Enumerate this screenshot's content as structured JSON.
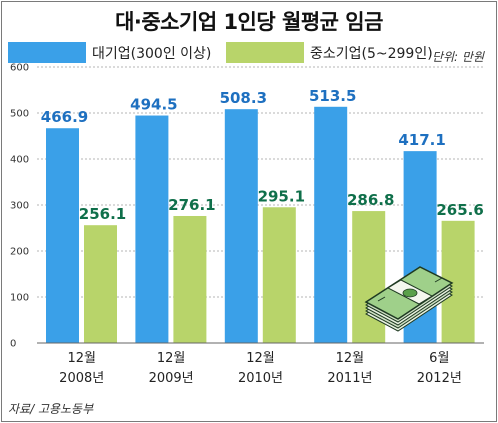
{
  "title": "대·중소기업 1인당 월평균 임금",
  "unit": "단위: 만원",
  "source": "자료/ 고용노동부",
  "colors": {
    "large": "#3aa0e8",
    "small": "#b8d46a",
    "label_large": "#1e70c0",
    "label_small": "#0f6f4a"
  },
  "icon": "money-stack-icon",
  "chart_data": {
    "type": "bar",
    "title": "대·중소기업 1인당 월평균 임금",
    "xlabel": "",
    "ylabel": "",
    "ylim": [
      0,
      600
    ],
    "yticks": [
      0,
      100,
      200,
      300,
      400,
      500,
      600
    ],
    "grid": true,
    "legend_position": "top",
    "categories": [
      [
        "12월",
        "2008년"
      ],
      [
        "12월",
        "2009년"
      ],
      [
        "12월",
        "2010년"
      ],
      [
        "12월",
        "2011년"
      ],
      [
        "6월",
        "2012년"
      ]
    ],
    "series": [
      {
        "name": "대기업(300인 이상)",
        "values": [
          466.9,
          494.5,
          508.3,
          513.5,
          417.1
        ]
      },
      {
        "name": "중소기업(5~299인)",
        "values": [
          256.1,
          276.1,
          295.1,
          286.8,
          265.6
        ]
      }
    ]
  }
}
